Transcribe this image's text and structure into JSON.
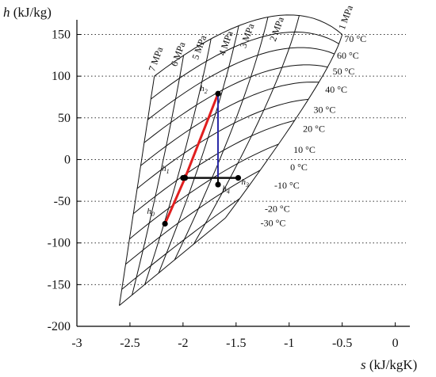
{
  "chart_data": {
    "type": "line",
    "xlabel_var": "s",
    "xlabel_unit": "(kJ/kgK)",
    "ylabel_var": "h",
    "ylabel_unit": "(kJ/kg)",
    "xlim": [
      -3,
      0.1
    ],
    "ylim": [
      -200,
      160
    ],
    "x_ticks": [
      -3,
      -2.5,
      -2,
      -1.5,
      -1,
      -0.5,
      0
    ],
    "x_tick_labels": [
      "-3",
      "-2.5",
      "-2",
      "-1.5",
      "-1",
      "-0.5",
      "0"
    ],
    "y_ticks": [
      -200,
      -150,
      -100,
      -50,
      0,
      50,
      100,
      150
    ],
    "y_tick_labels": [
      "-200",
      "-150",
      "-100",
      "-50",
      "0",
      "50",
      "100",
      "150"
    ],
    "grid": "horizontal dotted",
    "mesh": {
      "P00": [
        -2.6,
        -175
      ],
      "P10": [
        -1.6,
        -70
      ],
      "P01": [
        -2.27,
        100
      ],
      "P11": [
        -0.5,
        150
      ],
      "bulge_u": [
        0.15,
        45
      ],
      "bulge_v": [
        0.22,
        30
      ],
      "isotherm_v": [
        0.07,
        0.18,
        0.29,
        0.4,
        0.51,
        0.61,
        0.71,
        0.81,
        0.9,
        1.0
      ],
      "isobar_u": [
        0.0,
        0.12,
        0.24,
        0.37,
        0.52,
        0.7,
        1.0
      ]
    },
    "isotherm_labels": [
      "-30 °C",
      "-20 °C",
      "-10 °C",
      "0 °C",
      "10 °C",
      "20 °C",
      "30 °C",
      "40 °C",
      "50 °C",
      "60 °C",
      "70 °C"
    ],
    "isotherm_label_points": [
      [
        -1.27,
        -76
      ],
      [
        -1.23,
        -59
      ],
      [
        -1.14,
        -31
      ],
      [
        -0.99,
        -9
      ],
      [
        -0.96,
        12
      ],
      [
        -0.87,
        37
      ],
      [
        -0.77,
        60
      ],
      [
        -0.66,
        84
      ],
      [
        -0.59,
        106
      ],
      [
        -0.55,
        125
      ],
      [
        -0.48,
        145
      ]
    ],
    "isobar_labels": [
      "7 MPa",
      "6 MPa",
      "5 MPa",
      "4 MPa",
      "3 MPa",
      "2 MPa",
      "1 MPa"
    ],
    "isobar_label_points": [
      [
        -2.27,
        105
      ],
      [
        -2.06,
        111
      ],
      [
        -1.86,
        119
      ],
      [
        -1.61,
        124
      ],
      [
        -1.41,
        133
      ],
      [
        -1.13,
        141
      ],
      [
        -0.48,
        155
      ]
    ],
    "series": [
      {
        "color": "#e11f1f",
        "width": 3,
        "points": [
          [
            -2.17,
            -77
          ],
          [
            -1.98,
            -22
          ],
          [
            -1.67,
            79
          ]
        ]
      },
      {
        "color": "#2a2aa8",
        "width": 2,
        "points": [
          [
            -1.67,
            79
          ],
          [
            -1.67,
            -30
          ]
        ]
      },
      {
        "color": "#111111",
        "width": 2.5,
        "points": [
          [
            -2.0,
            -22
          ],
          [
            -1.48,
            -22
          ]
        ]
      },
      {
        "color": "#111111",
        "width": 2,
        "points": [
          [
            -1.67,
            -30
          ],
          [
            -1.67,
            -22
          ]
        ]
      }
    ],
    "points": [
      {
        "label": "h",
        "sub": "0",
        "x": -2.17,
        "y": -77,
        "lx": -2.34,
        "ly": -65
      },
      {
        "label": "h",
        "sub": "1",
        "x": -1.98,
        "y": -22,
        "lx": -2.2,
        "ly": -14
      },
      {
        "label": "h",
        "sub": "2",
        "x": -1.67,
        "y": 79,
        "lx": -1.84,
        "ly": 82
      },
      {
        "label": "h",
        "sub": "3",
        "x": -1.48,
        "y": -22,
        "lx": -1.45,
        "ly": -30
      },
      {
        "label": "h",
        "sub": "4",
        "x": -1.67,
        "y": -30,
        "lx": -1.63,
        "ly": -38
      },
      {
        "label": "",
        "sub": "",
        "x": -2.0,
        "y": -22,
        "lx": -2.0,
        "ly": -22
      }
    ]
  }
}
